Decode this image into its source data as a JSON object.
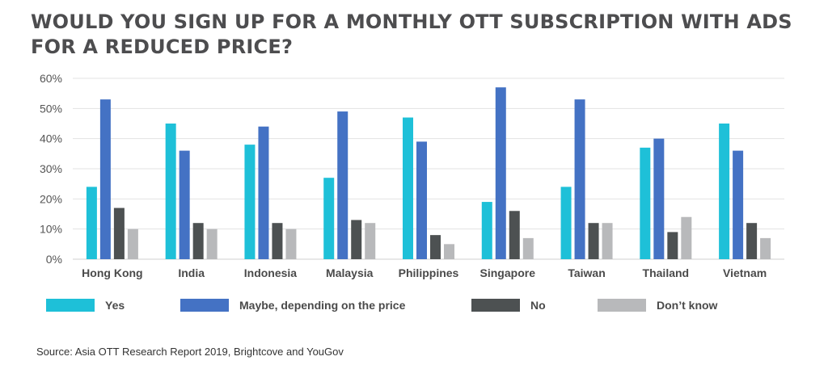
{
  "title": "WOULD YOU SIGN UP FOR A MONTHLY OTT SUBSCRIPTION WITH ADS FOR A REDUCED PRICE?",
  "source": "Source: Asia OTT Research Report 2019, Brightcove and YouGov",
  "chart_data": {
    "type": "bar",
    "title": "WOULD YOU SIGN UP FOR A MONTHLY OTT SUBSCRIPTION WITH ADS FOR A REDUCED PRICE?",
    "categories": [
      "Hong Kong",
      "India",
      "Indonesia",
      "Malaysia",
      "Philippines",
      "Singapore",
      "Taiwan",
      "Thailand",
      "Vietnam"
    ],
    "series": [
      {
        "name": "Yes",
        "color": "#1ec0d8",
        "values": [
          24,
          45,
          38,
          27,
          47,
          19,
          24,
          37,
          45
        ]
      },
      {
        "name": "Maybe, depending on the price",
        "color": "#4472c4",
        "values": [
          53,
          36,
          44,
          49,
          39,
          57,
          53,
          40,
          36
        ]
      },
      {
        "name": "No",
        "color": "#4d5152",
        "values": [
          17,
          12,
          12,
          13,
          8,
          16,
          12,
          9,
          12
        ]
      },
      {
        "name": "Don’t know",
        "color": "#b8b9bb",
        "values": [
          10,
          10,
          10,
          12,
          5,
          7,
          12,
          14,
          7
        ]
      }
    ],
    "ylim": [
      0,
      60
    ],
    "yticks": [
      "0%",
      "10%",
      "20%",
      "30%",
      "40%",
      "50%",
      "60%"
    ],
    "ytick_values": [
      0,
      10,
      20,
      30,
      40,
      50,
      60
    ],
    "xlabel": "",
    "ylabel": "",
    "grid": true,
    "legend_position": "bottom"
  }
}
